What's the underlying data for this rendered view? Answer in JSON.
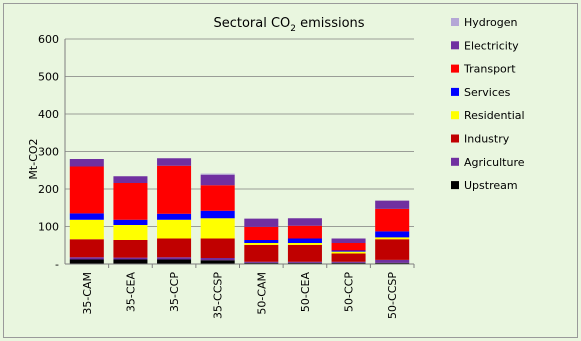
{
  "chart_data": {
    "type": "bar",
    "stacked": true,
    "title": "Sectoral CO",
    "title_subscript": "2",
    "title_suffix": " emissions",
    "ylabel": "Mt-CO2",
    "ylim": [
      0,
      600
    ],
    "y_ticks": [
      "-",
      "100",
      "200",
      "300",
      "400",
      "500",
      "600"
    ],
    "grid": true,
    "legend_position": "right",
    "categories": [
      "35-CAM",
      "35-CEA",
      "35-CCP",
      "35-CCSP",
      "50-CAM",
      "50-CEA",
      "50-CCP",
      "50-CCSP"
    ],
    "series": [
      {
        "name": "Upstream",
        "color": "#000000",
        "values": [
          12,
          12,
          12,
          10,
          3,
          3,
          3,
          3
        ]
      },
      {
        "name": "Agriculture",
        "color": "#7030a0",
        "values": [
          6,
          5,
          6,
          6,
          3,
          3,
          3,
          8
        ]
      },
      {
        "name": "Industry",
        "color": "#c00000",
        "values": [
          48,
          47,
          50,
          52,
          45,
          45,
          22,
          55
        ]
      },
      {
        "name": "Residential",
        "color": "#ffff00",
        "values": [
          52,
          40,
          50,
          54,
          5,
          5,
          5,
          5
        ]
      },
      {
        "name": "Services",
        "color": "#0000ff",
        "values": [
          17,
          14,
          16,
          20,
          8,
          12,
          3,
          16
        ]
      },
      {
        "name": "Transport",
        "color": "#ff0000",
        "values": [
          125,
          98,
          128,
          68,
          35,
          34,
          20,
          60
        ]
      },
      {
        "name": "Electricity",
        "color": "#7030a0",
        "values": [
          20,
          18,
          20,
          28,
          22,
          20,
          12,
          22
        ]
      },
      {
        "name": "Hydrogen",
        "color": "#b4a7d6",
        "values": [
          0,
          0,
          0,
          3,
          0,
          0,
          0,
          0
        ]
      }
    ]
  }
}
